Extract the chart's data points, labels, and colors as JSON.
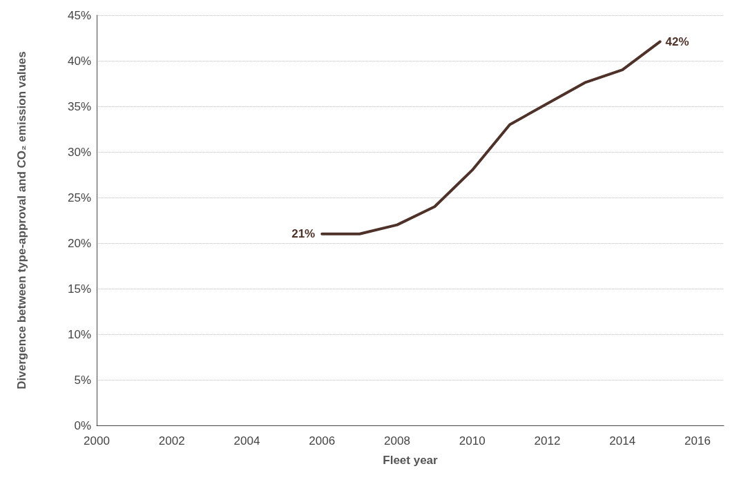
{
  "chart_data": {
    "type": "line",
    "xlabel": "Fleet year",
    "ylabel": "Divergence between type-approval and CO₂ emission values",
    "x": [
      2006,
      2007,
      2008,
      2009,
      2010,
      2011,
      2012,
      2013,
      2014,
      2015
    ],
    "series": [
      {
        "color": "#4e3229",
        "values": [
          21,
          21,
          22,
          24,
          28,
          33,
          35.3,
          37.6,
          39,
          42.1
        ],
        "value_labels": [
          "21%",
          null,
          null,
          null,
          null,
          null,
          null,
          null,
          null,
          "42%"
        ]
      }
    ],
    "xlim": [
      2000,
      2016.7
    ],
    "xticks": [
      2000,
      2002,
      2004,
      2006,
      2008,
      2010,
      2012,
      2014,
      2016
    ],
    "ylim": [
      0,
      45
    ],
    "yticks": [
      {
        "value": 0,
        "label": "0%"
      },
      {
        "value": 5,
        "label": "5%"
      },
      {
        "value": 10,
        "label": "10%"
      },
      {
        "value": 15,
        "label": "15%"
      },
      {
        "value": 20,
        "label": "20%"
      },
      {
        "value": 25,
        "label": "25%"
      },
      {
        "value": 30,
        "label": "30%"
      },
      {
        "value": 35,
        "label": "35%"
      },
      {
        "value": 40,
        "label": "40%"
      },
      {
        "value": 45,
        "label": "45%"
      }
    ],
    "grid": "y",
    "marker": "none",
    "line_style": "solid"
  }
}
